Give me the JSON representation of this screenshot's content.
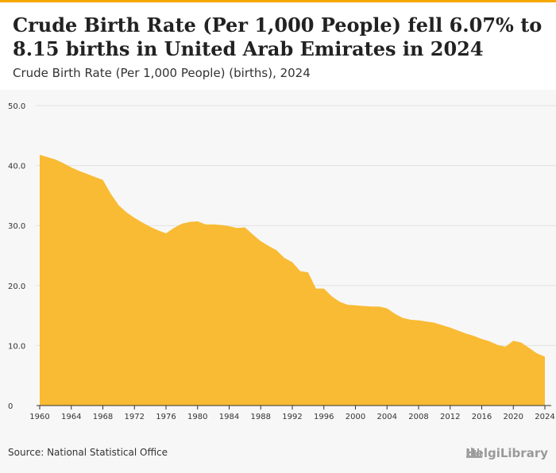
{
  "header": {
    "title": "Crude Birth Rate (Per 1,000 People) fell 6.07% to 8.15 births in United Arab Emirates in 2024",
    "subtitle": "Crude Birth Rate (Per 1,000 People) (births), 2024"
  },
  "footer": {
    "source": "Source: National Statistical Office",
    "logo": "HelgiLibrary"
  },
  "colors": {
    "accent": "#f5a800",
    "area_fill": "#f9bb34",
    "grid": "#e2e2e2",
    "background": "#f7f7f7"
  },
  "chart_data": {
    "type": "area",
    "title": "Crude Birth Rate (Per 1,000 People) fell 6.07% to 8.15 births in United Arab Emirates in 2024",
    "subtitle": "Crude Birth Rate (Per 1,000 People) (births), 2024",
    "ylim": [
      0,
      50
    ],
    "y_ticks": [
      "0",
      "10.0",
      "20.0",
      "30.0",
      "40.0",
      "50.0"
    ],
    "y_tick_values": [
      0,
      10,
      20,
      30,
      40,
      50
    ],
    "x_ticks": [
      "1960",
      "1964",
      "1968",
      "1972",
      "1976",
      "1980",
      "1984",
      "1988",
      "1992",
      "1996",
      "2000",
      "2004",
      "2008",
      "2012",
      "2016",
      "2020",
      "2024"
    ],
    "grid": true,
    "x": [
      1960,
      1961,
      1962,
      1963,
      1964,
      1965,
      1966,
      1967,
      1968,
      1969,
      1970,
      1971,
      1972,
      1973,
      1974,
      1975,
      1976,
      1977,
      1978,
      1979,
      1980,
      1981,
      1982,
      1983,
      1984,
      1985,
      1986,
      1987,
      1988,
      1989,
      1990,
      1991,
      1992,
      1993,
      1994,
      1995,
      1996,
      1997,
      1998,
      1999,
      2000,
      2001,
      2002,
      2003,
      2004,
      2005,
      2006,
      2007,
      2008,
      2009,
      2010,
      2011,
      2012,
      2013,
      2014,
      2015,
      2016,
      2017,
      2018,
      2019,
      2020,
      2021,
      2022,
      2023,
      2024
    ],
    "series": [
      {
        "values": [
          41.8,
          41.4,
          41.0,
          40.4,
          39.7,
          39.1,
          38.6,
          38.1,
          37.6,
          35.3,
          33.4,
          32.2,
          31.3,
          30.5,
          29.8,
          29.2,
          28.7,
          29.6,
          30.3,
          30.6,
          30.7,
          30.2,
          30.2,
          30.1,
          29.9,
          29.6,
          29.7,
          28.5,
          27.4,
          26.6,
          25.9,
          24.6,
          23.9,
          22.4,
          22.2,
          19.5,
          19.5,
          18.2,
          17.3,
          16.8,
          16.7,
          16.6,
          16.5,
          16.5,
          16.2,
          15.3,
          14.6,
          14.3,
          14.2,
          14.0,
          13.8,
          13.4,
          13.0,
          12.5,
          12.0,
          11.6,
          11.1,
          10.7,
          10.1,
          9.8,
          10.8,
          10.5,
          9.6,
          8.7,
          8.15
        ]
      }
    ]
  }
}
